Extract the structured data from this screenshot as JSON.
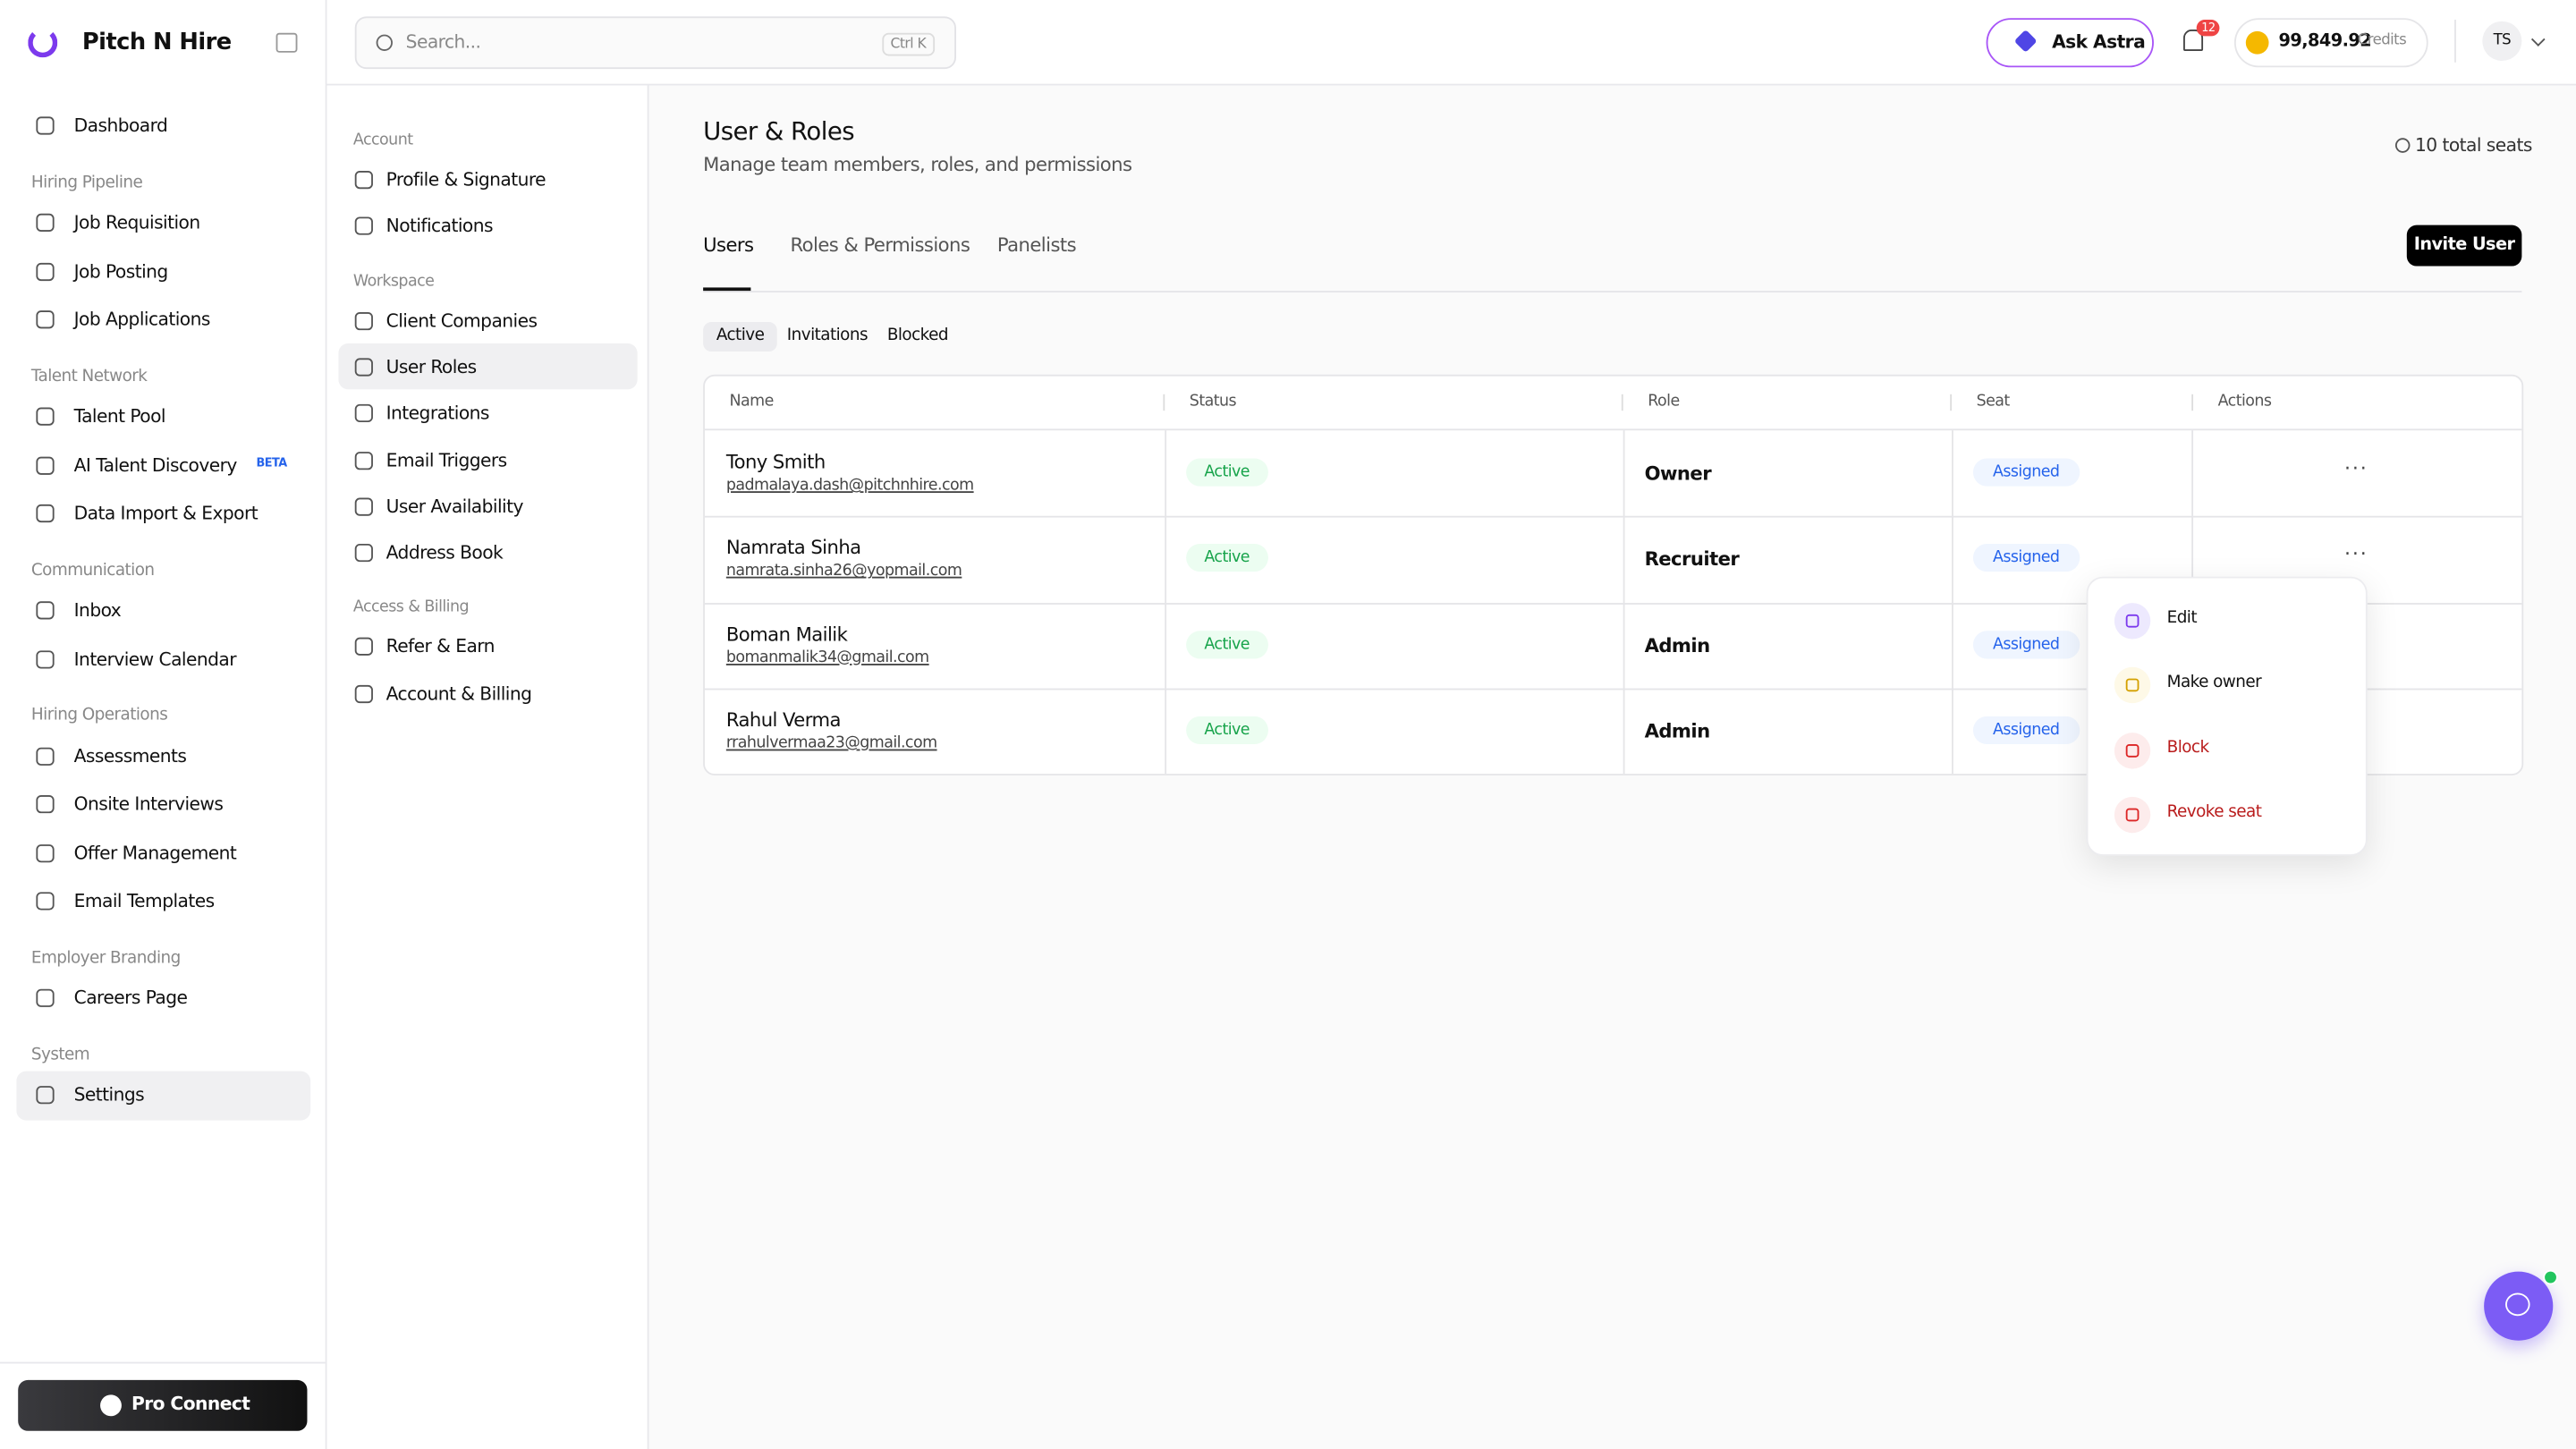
{
  "brand": "Pitch N Hire",
  "search": {
    "placeholder": "Search...",
    "shortcut": "Ctrl K"
  },
  "topbar": {
    "ask": "Ask Astra",
    "notifications": "12",
    "credits": "99,849.92",
    "credits_label": "Credits",
    "avatar": "TS"
  },
  "sidebar": {
    "groups": [
      {
        "items": [
          {
            "label": "Dashboard"
          }
        ]
      },
      {
        "title": "Hiring Pipeline",
        "items": [
          {
            "label": "Job Requisition"
          },
          {
            "label": "Job Posting"
          },
          {
            "label": "Job Applications"
          }
        ]
      },
      {
        "title": "Talent Network",
        "items": [
          {
            "label": "Talent Pool"
          },
          {
            "label": "AI Talent Discovery",
            "badge": "BETA"
          },
          {
            "label": "Data Import & Export"
          }
        ]
      },
      {
        "title": "Communication",
        "items": [
          {
            "label": "Inbox"
          },
          {
            "label": "Interview Calendar"
          }
        ]
      },
      {
        "title": "Hiring Operations",
        "items": [
          {
            "label": "Assessments"
          },
          {
            "label": "Onsite Interviews"
          },
          {
            "label": "Offer Management"
          },
          {
            "label": "Email Templates"
          }
        ]
      },
      {
        "title": "Employer Branding",
        "items": [
          {
            "label": "Careers Page"
          }
        ]
      },
      {
        "title": "System",
        "items": [
          {
            "label": "Settings"
          }
        ]
      }
    ],
    "pro": "Pro Connect"
  },
  "settings_nav": {
    "groups": [
      {
        "title": "Account",
        "items": [
          "Profile & Signature",
          "Notifications"
        ]
      },
      {
        "title": "Workspace",
        "items": [
          "Client Companies",
          "User Roles",
          "Integrations",
          "Email Triggers",
          "User Availability",
          "Address Book"
        ]
      },
      {
        "title": "Access & Billing",
        "items": [
          "Refer & Earn",
          "Account & Billing"
        ]
      }
    ]
  },
  "page": {
    "title": "User & Roles",
    "subtitle": "Manage team members, roles, and permissions",
    "seats": "10 total seats",
    "tabs": [
      "Users",
      "Roles & Permissions",
      "Panelists"
    ],
    "invite": "Invite User",
    "filters": [
      "Active",
      "Invitations",
      "Blocked"
    ]
  },
  "table": {
    "columns": [
      "Name",
      "Status",
      "Role",
      "Seat",
      "Actions"
    ],
    "rows": [
      {
        "name": "Tony Smith",
        "email": "padmalaya.dash@pitchnhire.com",
        "status": "Active",
        "role": "Owner",
        "seat": "Assigned"
      },
      {
        "name": "Namrata Sinha",
        "email": "namrata.sinha26@yopmail.com",
        "status": "Active",
        "role": "Recruiter",
        "seat": "Assigned"
      },
      {
        "name": "Boman Mailik",
        "email": "bomanmalik34@gmail.com",
        "status": "Active",
        "role": "Admin",
        "seat": "Assigned"
      },
      {
        "name": "Rahul Verma",
        "email": "rrahulvermaa23@gmail.com",
        "status": "Active",
        "role": "Admin",
        "seat": "Assigned"
      }
    ]
  },
  "menu": [
    "Edit",
    "Make owner",
    "Block",
    "Revoke seat"
  ]
}
